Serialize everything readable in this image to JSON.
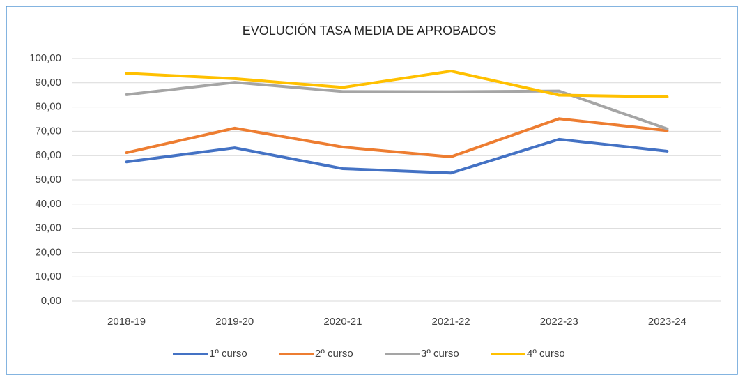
{
  "chart_data": {
    "type": "line",
    "title": "EVOLUCIÓN TASA MEDIA DE APROBADOS",
    "categories": [
      "2018-19",
      "2019-20",
      "2020-21",
      "2021-22",
      "2022-23",
      "2023-24"
    ],
    "series": [
      {
        "name": "1º curso",
        "color": "#4472c4",
        "values": [
          57.4,
          63.2,
          54.6,
          52.8,
          66.7,
          61.8
        ]
      },
      {
        "name": "2º curso",
        "color": "#ed7d31",
        "values": [
          61.2,
          71.3,
          63.5,
          59.5,
          75.2,
          70.3
        ]
      },
      {
        "name": "3º curso",
        "color": "#a5a5a5",
        "values": [
          85.1,
          90.2,
          86.4,
          86.3,
          86.6,
          71.0
        ]
      },
      {
        "name": "4º curso",
        "color": "#ffc000",
        "values": [
          93.9,
          91.7,
          88.1,
          94.8,
          84.9,
          84.2
        ]
      }
    ],
    "ylim": [
      0,
      100
    ],
    "yticks": [
      {
        "value": 0,
        "label": "0,00"
      },
      {
        "value": 10,
        "label": "10,00"
      },
      {
        "value": 20,
        "label": "20,00"
      },
      {
        "value": 30,
        "label": "30,00"
      },
      {
        "value": 40,
        "label": "40,00"
      },
      {
        "value": 50,
        "label": "50,00"
      },
      {
        "value": 60,
        "label": "60,00"
      },
      {
        "value": 70,
        "label": "70,00"
      },
      {
        "value": 80,
        "label": "80,00"
      },
      {
        "value": 90,
        "label": "90,00"
      },
      {
        "value": 100,
        "label": "100,00"
      }
    ],
    "grid": true,
    "legend": "bottom"
  }
}
